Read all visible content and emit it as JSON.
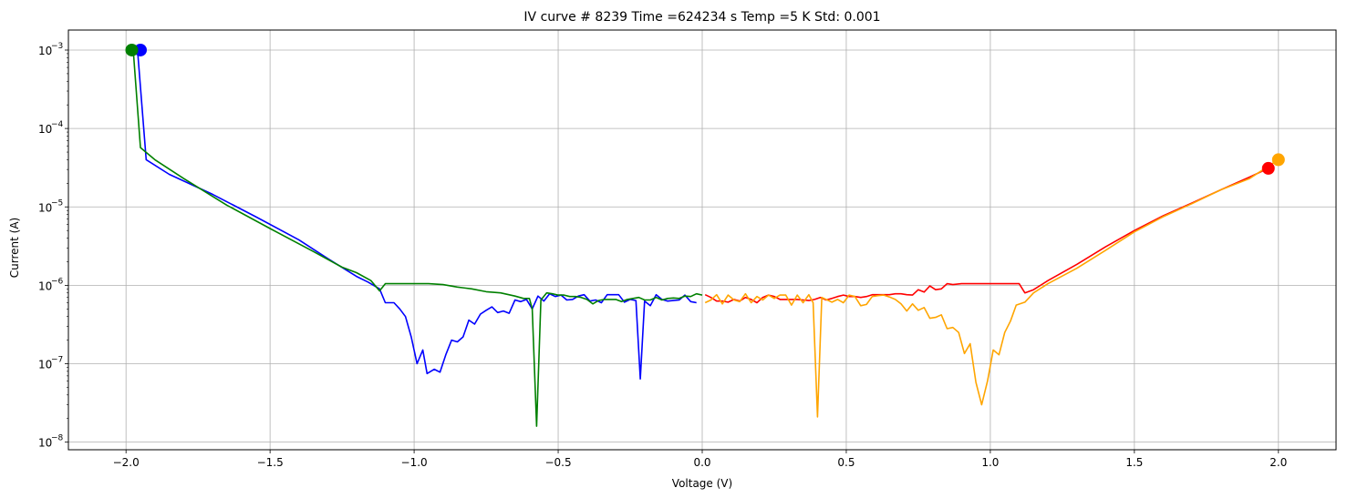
{
  "chart_data": {
    "type": "line",
    "title": "IV curve # 8239  Time =624234 s  Temp =5 K Std: 0.001",
    "xlabel": "Voltage (V)",
    "ylabel": "Current (A)",
    "xlim": [
      -2.2,
      2.2
    ],
    "ylim": [
      8e-09,
      0.0018
    ],
    "yscale": "log",
    "grid": true,
    "x_ticks": [
      -2.0,
      -1.5,
      -1.0,
      -0.5,
      0.0,
      0.5,
      1.0,
      1.5,
      2.0
    ],
    "x_tick_labels": [
      "−2.0",
      "−1.5",
      "−1.0",
      "−0.5",
      "0.0",
      "0.5",
      "1.0",
      "1.5",
      "2.0"
    ],
    "y_ticks": [
      {
        "base": "10",
        "exp": "−3",
        "value": 0.001
      },
      {
        "base": "10",
        "exp": "−4",
        "value": 0.0001
      },
      {
        "base": "10",
        "exp": "−5",
        "value": 1e-05
      },
      {
        "base": "10",
        "exp": "−6",
        "value": 1e-06
      },
      {
        "base": "10",
        "exp": "−7",
        "value": 1e-07
      },
      {
        "base": "10",
        "exp": "−8",
        "value": 1e-08
      }
    ],
    "series": [
      {
        "color": "#0000ff",
        "points": [
          [
            -1.96,
            0.001
          ],
          [
            -1.93,
            4e-05
          ],
          [
            -1.85,
            2.6e-05
          ],
          [
            -1.7,
            1.45e-05
          ],
          [
            -1.55,
            7.5e-06
          ],
          [
            -1.4,
            3.8e-06
          ],
          [
            -1.3,
            2.2e-06
          ],
          [
            -1.2,
            1.3e-06
          ],
          [
            -1.16,
            1.1e-06
          ],
          [
            -1.12,
            9e-07
          ],
          [
            -1.1,
            6e-07
          ],
          [
            -1.07,
            6e-07
          ],
          [
            -1.05,
            5e-07
          ],
          [
            -1.03,
            4e-07
          ],
          [
            -1.01,
            2.2e-07
          ],
          [
            -0.99,
            1e-07
          ],
          [
            -0.97,
            1.5e-07
          ],
          [
            -0.955,
            7.5e-08
          ],
          [
            -0.93,
            8.5e-08
          ],
          [
            -0.91,
            7.8e-08
          ],
          [
            -0.89,
            1.3e-07
          ],
          [
            -0.87,
            2e-07
          ],
          [
            -0.85,
            1.9e-07
          ],
          [
            -0.83,
            2.2e-07
          ],
          [
            -0.81,
            3.6e-07
          ],
          [
            -0.79,
            3.2e-07
          ],
          [
            -0.77,
            4.3e-07
          ],
          [
            -0.75,
            4.8e-07
          ],
          [
            -0.73,
            5.3e-07
          ],
          [
            -0.71,
            4.5e-07
          ],
          [
            -0.69,
            4.7e-07
          ],
          [
            -0.67,
            4.4e-07
          ],
          [
            -0.65,
            6.5e-07
          ],
          [
            -0.63,
            6.2e-07
          ],
          [
            -0.61,
            6.6e-07
          ],
          [
            -0.59,
            5e-07
          ],
          [
            -0.57,
            7.3e-07
          ],
          [
            -0.55,
            6.3e-07
          ],
          [
            -0.53,
            7.8e-07
          ],
          [
            -0.51,
            7.2e-07
          ],
          [
            -0.49,
            7.5e-07
          ],
          [
            -0.47,
            6.5e-07
          ],
          [
            -0.45,
            6.6e-07
          ],
          [
            -0.43,
            7.3e-07
          ],
          [
            -0.41,
            7.6e-07
          ],
          [
            -0.39,
            6.3e-07
          ],
          [
            -0.37,
            6.5e-07
          ],
          [
            -0.35,
            6e-07
          ],
          [
            -0.33,
            7.6e-07
          ],
          [
            -0.31,
            7.6e-07
          ],
          [
            -0.29,
            7.6e-07
          ],
          [
            -0.27,
            6.1e-07
          ],
          [
            -0.25,
            6.6e-07
          ],
          [
            -0.23,
            6.4e-07
          ],
          [
            -0.215,
            6.4e-08
          ],
          [
            -0.2,
            6.3e-07
          ],
          [
            -0.18,
            5.5e-07
          ],
          [
            -0.16,
            7.6e-07
          ],
          [
            -0.14,
            6.6e-07
          ],
          [
            -0.12,
            6.3e-07
          ],
          [
            -0.1,
            6.4e-07
          ],
          [
            -0.08,
            6.5e-07
          ],
          [
            -0.06,
            7.5e-07
          ],
          [
            -0.04,
            6.2e-07
          ],
          [
            -0.02,
            6e-07
          ]
        ],
        "marker_point": [
          -1.95,
          0.001
        ]
      },
      {
        "color": "#008000",
        "points": [
          [
            -1.975,
            0.001
          ],
          [
            -1.95,
            5.7e-05
          ],
          [
            -1.9,
            4e-05
          ],
          [
            -1.8,
            2.3e-05
          ],
          [
            -1.65,
            1.05e-05
          ],
          [
            -1.5,
            5.3e-06
          ],
          [
            -1.35,
            2.7e-06
          ],
          [
            -1.25,
            1.7e-06
          ],
          [
            -1.2,
            1.45e-06
          ],
          [
            -1.15,
            1.15e-06
          ],
          [
            -1.12,
            8.5e-07
          ],
          [
            -1.1,
            1.05e-06
          ],
          [
            -1.05,
            1.05e-06
          ],
          [
            -1.0,
            1.05e-06
          ],
          [
            -0.95,
            1.05e-06
          ],
          [
            -0.9,
            1.02e-06
          ],
          [
            -0.85,
            9.5e-07
          ],
          [
            -0.8,
            9e-07
          ],
          [
            -0.75,
            8.3e-07
          ],
          [
            -0.7,
            8e-07
          ],
          [
            -0.65,
            7.3e-07
          ],
          [
            -0.62,
            6.8e-07
          ],
          [
            -0.6,
            6.8e-07
          ],
          [
            -0.59,
            5e-07
          ],
          [
            -0.575,
            1.6e-08
          ],
          [
            -0.56,
            6.5e-07
          ],
          [
            -0.54,
            8e-07
          ],
          [
            -0.52,
            7.8e-07
          ],
          [
            -0.5,
            7.5e-07
          ],
          [
            -0.48,
            7.5e-07
          ],
          [
            -0.46,
            7.2e-07
          ],
          [
            -0.44,
            7.2e-07
          ],
          [
            -0.42,
            7e-07
          ],
          [
            -0.4,
            6.6e-07
          ],
          [
            -0.38,
            5.8e-07
          ],
          [
            -0.36,
            6.4e-07
          ],
          [
            -0.34,
            6.6e-07
          ],
          [
            -0.32,
            6.6e-07
          ],
          [
            -0.3,
            6.6e-07
          ],
          [
            -0.28,
            6.2e-07
          ],
          [
            -0.26,
            6.6e-07
          ],
          [
            -0.24,
            6.8e-07
          ],
          [
            -0.22,
            7e-07
          ],
          [
            -0.2,
            6.5e-07
          ],
          [
            -0.18,
            6.5e-07
          ],
          [
            -0.16,
            7e-07
          ],
          [
            -0.14,
            6.5e-07
          ],
          [
            -0.12,
            6.8e-07
          ],
          [
            -0.1,
            6.9e-07
          ],
          [
            -0.08,
            6.8e-07
          ],
          [
            -0.06,
            7.3e-07
          ],
          [
            -0.04,
            7.2e-07
          ],
          [
            -0.02,
            7.8e-07
          ],
          [
            0.0,
            7.5e-07
          ]
        ],
        "marker_point": [
          -1.98,
          0.001
        ]
      },
      {
        "color": "#ff0000",
        "points": [
          [
            0.01,
            7.6e-07
          ],
          [
            0.03,
            7e-07
          ],
          [
            0.05,
            6.3e-07
          ],
          [
            0.07,
            6.3e-07
          ],
          [
            0.09,
            6.1e-07
          ],
          [
            0.11,
            6.6e-07
          ],
          [
            0.13,
            6.3e-07
          ],
          [
            0.15,
            7e-07
          ],
          [
            0.17,
            6.6e-07
          ],
          [
            0.19,
            6e-07
          ],
          [
            0.21,
            7e-07
          ],
          [
            0.23,
            7.5e-07
          ],
          [
            0.25,
            7.2e-07
          ],
          [
            0.27,
            6.6e-07
          ],
          [
            0.29,
            6.6e-07
          ],
          [
            0.31,
            6.6e-07
          ],
          [
            0.33,
            6.6e-07
          ],
          [
            0.35,
            6.5e-07
          ],
          [
            0.37,
            6.4e-07
          ],
          [
            0.39,
            6.6e-07
          ],
          [
            0.41,
            7e-07
          ],
          [
            0.43,
            6.5e-07
          ],
          [
            0.45,
            6.8e-07
          ],
          [
            0.47,
            7.2e-07
          ],
          [
            0.49,
            7.5e-07
          ],
          [
            0.51,
            7.2e-07
          ],
          [
            0.53,
            7.2e-07
          ],
          [
            0.55,
            7e-07
          ],
          [
            0.57,
            7.2e-07
          ],
          [
            0.59,
            7.6e-07
          ],
          [
            0.61,
            7.6e-07
          ],
          [
            0.63,
            7.6e-07
          ],
          [
            0.65,
            7.6e-07
          ],
          [
            0.67,
            7.8e-07
          ],
          [
            0.69,
            7.8e-07
          ],
          [
            0.71,
            7.6e-07
          ],
          [
            0.73,
            7.5e-07
          ],
          [
            0.75,
            8.8e-07
          ],
          [
            0.77,
            8.2e-07
          ],
          [
            0.79,
            9.8e-07
          ],
          [
            0.81,
            8.8e-07
          ],
          [
            0.83,
            9e-07
          ],
          [
            0.85,
            1.05e-06
          ],
          [
            0.87,
            1.02e-06
          ],
          [
            0.9,
            1.05e-06
          ],
          [
            0.95,
            1.05e-06
          ],
          [
            1.0,
            1.05e-06
          ],
          [
            1.05,
            1.05e-06
          ],
          [
            1.1,
            1.05e-06
          ],
          [
            1.12,
            8e-07
          ],
          [
            1.15,
            8.8e-07
          ],
          [
            1.2,
            1.15e-06
          ],
          [
            1.3,
            1.85e-06
          ],
          [
            1.4,
            3.1e-06
          ],
          [
            1.5,
            5e-06
          ],
          [
            1.6,
            7.7e-06
          ],
          [
            1.7,
            1.12e-05
          ],
          [
            1.8,
            1.65e-05
          ],
          [
            1.9,
            2.4e-05
          ],
          [
            1.965,
            3.1e-05
          ]
        ],
        "marker_point": [
          1.965,
          3.1e-05
        ]
      },
      {
        "color": "#ffa500",
        "points": [
          [
            0.01,
            6e-07
          ],
          [
            0.03,
            6.5e-07
          ],
          [
            0.05,
            7.6e-07
          ],
          [
            0.07,
            5.8e-07
          ],
          [
            0.09,
            7.5e-07
          ],
          [
            0.11,
            6.5e-07
          ],
          [
            0.13,
            6.2e-07
          ],
          [
            0.15,
            7.8e-07
          ],
          [
            0.17,
            6e-07
          ],
          [
            0.19,
            7.2e-07
          ],
          [
            0.21,
            6.5e-07
          ],
          [
            0.23,
            7.5e-07
          ],
          [
            0.25,
            6.8e-07
          ],
          [
            0.27,
            7.5e-07
          ],
          [
            0.29,
            7.5e-07
          ],
          [
            0.31,
            5.6e-07
          ],
          [
            0.33,
            7.5e-07
          ],
          [
            0.35,
            6e-07
          ],
          [
            0.37,
            7.6e-07
          ],
          [
            0.385,
            6e-07
          ],
          [
            0.4,
            2.1e-08
          ],
          [
            0.415,
            7e-07
          ],
          [
            0.43,
            6.6e-07
          ],
          [
            0.45,
            6.1e-07
          ],
          [
            0.47,
            6.6e-07
          ],
          [
            0.49,
            6e-07
          ],
          [
            0.51,
            7.5e-07
          ],
          [
            0.53,
            7.2e-07
          ],
          [
            0.55,
            5.5e-07
          ],
          [
            0.57,
            5.7e-07
          ],
          [
            0.59,
            7.2e-07
          ],
          [
            0.61,
            7.4e-07
          ],
          [
            0.63,
            7.5e-07
          ],
          [
            0.65,
            7.1e-07
          ],
          [
            0.67,
            6.6e-07
          ],
          [
            0.69,
            5.8e-07
          ],
          [
            0.71,
            4.7e-07
          ],
          [
            0.73,
            5.8e-07
          ],
          [
            0.75,
            4.8e-07
          ],
          [
            0.77,
            5.2e-07
          ],
          [
            0.79,
            3.8e-07
          ],
          [
            0.81,
            3.9e-07
          ],
          [
            0.83,
            4.2e-07
          ],
          [
            0.85,
            2.8e-07
          ],
          [
            0.87,
            2.9e-07
          ],
          [
            0.89,
            2.5e-07
          ],
          [
            0.91,
            1.35e-07
          ],
          [
            0.93,
            1.8e-07
          ],
          [
            0.95,
            5.8e-08
          ],
          [
            0.97,
            3e-08
          ],
          [
            0.99,
            6e-08
          ],
          [
            1.01,
            1.5e-07
          ],
          [
            1.03,
            1.3e-07
          ],
          [
            1.05,
            2.5e-07
          ],
          [
            1.07,
            3.5e-07
          ],
          [
            1.09,
            5.6e-07
          ],
          [
            1.12,
            6.1e-07
          ],
          [
            1.15,
            8e-07
          ],
          [
            1.2,
            1.05e-06
          ],
          [
            1.3,
            1.65e-06
          ],
          [
            1.4,
            2.8e-06
          ],
          [
            1.5,
            4.8e-06
          ],
          [
            1.6,
            7.5e-06
          ],
          [
            1.7,
            1.1e-05
          ],
          [
            1.8,
            1.65e-05
          ],
          [
            1.9,
            2.3e-05
          ],
          [
            2.0,
            4e-05
          ]
        ],
        "marker_point": [
          2.0,
          4e-05
        ]
      }
    ]
  }
}
